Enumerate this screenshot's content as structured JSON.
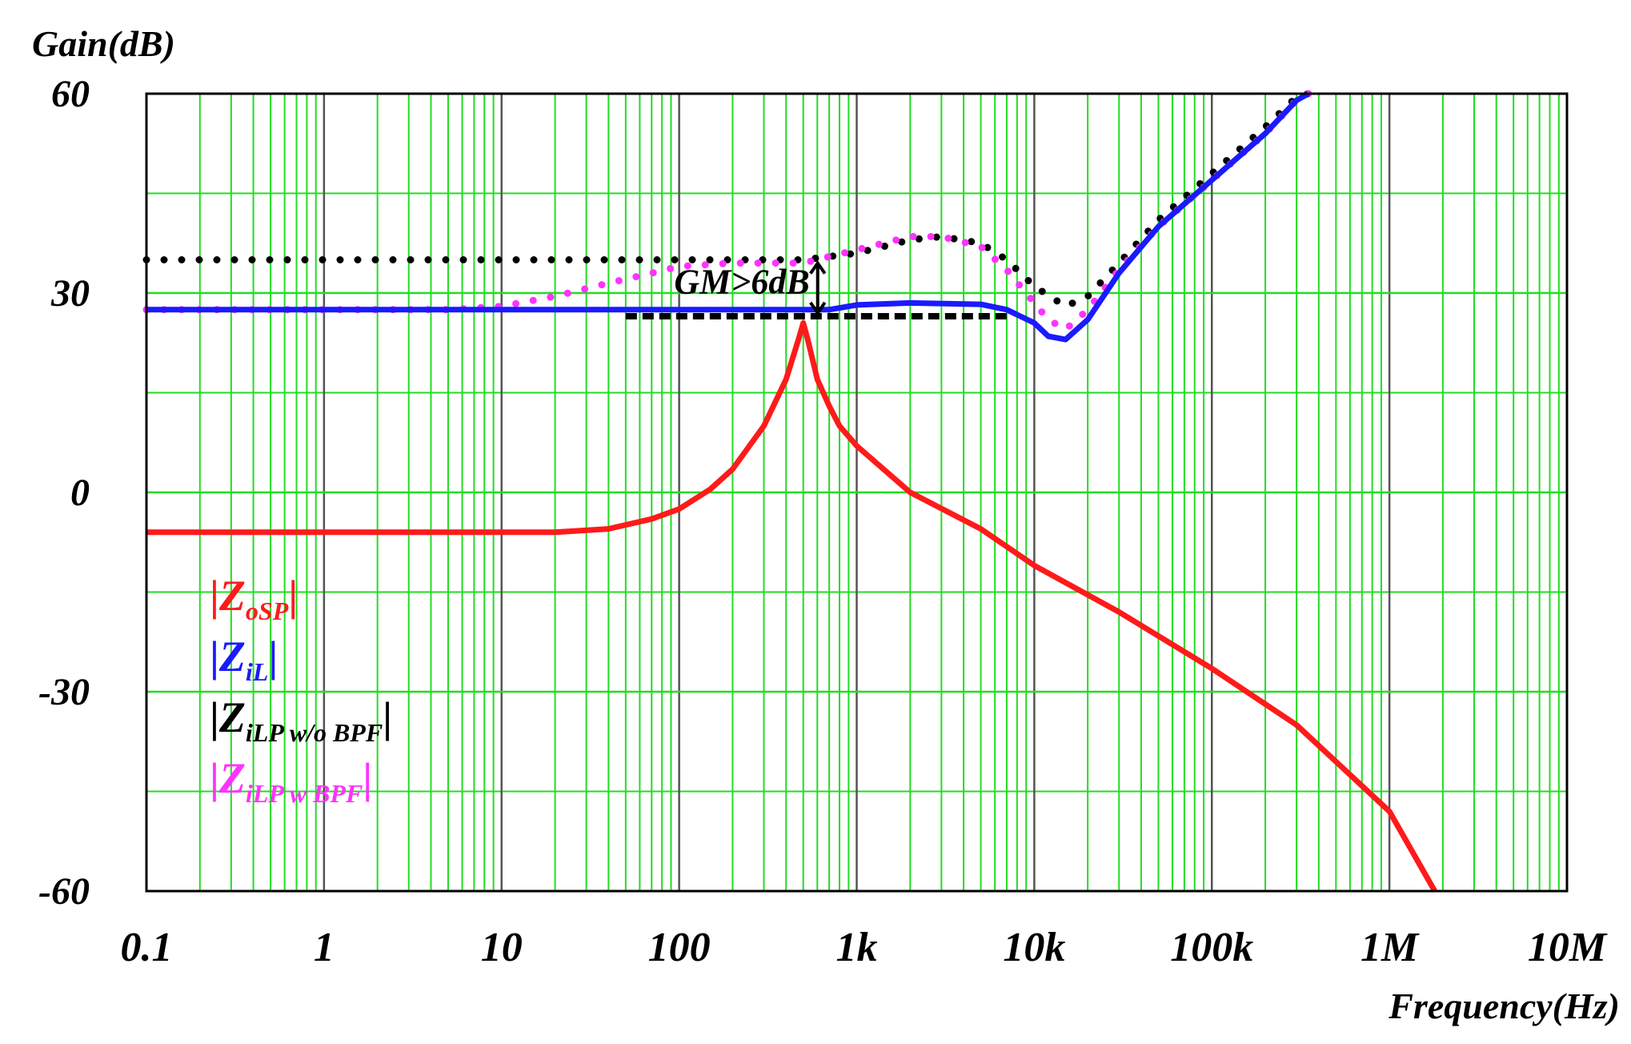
{
  "chart_data": {
    "type": "line",
    "ylabel": "Gain(dB)",
    "xlabel": "Frequency(Hz)",
    "x_scale": "log",
    "xlim": [
      0.1,
      10000000
    ],
    "ylim": [
      -60,
      60
    ],
    "x_ticks": [
      {
        "value": 0.1,
        "label": "0.1"
      },
      {
        "value": 1,
        "label": "1"
      },
      {
        "value": 10,
        "label": "10"
      },
      {
        "value": 100,
        "label": "100"
      },
      {
        "value": 1000,
        "label": "1k"
      },
      {
        "value": 10000,
        "label": "10k"
      },
      {
        "value": 100000,
        "label": "100k"
      },
      {
        "value": 1000000,
        "label": "1M"
      },
      {
        "value": 10000000,
        "label": "10M"
      }
    ],
    "y_ticks": [
      {
        "value": 60,
        "label": "60"
      },
      {
        "value": 30,
        "label": "30"
      },
      {
        "value": 0,
        "label": "0"
      },
      {
        "value": -30,
        "label": "-30"
      },
      {
        "value": -60,
        "label": "-60"
      }
    ],
    "grid": true,
    "grid_major_color": "#555555",
    "grid_minor_color": "#22dd22",
    "annotation": {
      "text": "GM>6dB",
      "x": 500,
      "y_top": 34.5,
      "y_bottom": 27
    },
    "reference_line": {
      "name": "dashed-black-reference",
      "x": [
        50,
        7000
      ],
      "y": 26.5,
      "color": "#000000"
    },
    "series": [
      {
        "name": "|ZoSP|",
        "legend_main": "Z",
        "legend_sub": "oSP",
        "color": "#ff1a1a",
        "style": "solid",
        "points": [
          [
            0.1,
            -6
          ],
          [
            10,
            -6
          ],
          [
            20,
            -6
          ],
          [
            40,
            -5.5
          ],
          [
            70,
            -4
          ],
          [
            100,
            -2.5
          ],
          [
            150,
            0.5
          ],
          [
            200,
            3.5
          ],
          [
            300,
            10
          ],
          [
            400,
            17
          ],
          [
            470,
            23
          ],
          [
            500,
            25.5
          ],
          [
            530,
            23
          ],
          [
            600,
            17
          ],
          [
            700,
            13
          ],
          [
            800,
            10
          ],
          [
            1000,
            7
          ],
          [
            2000,
            0
          ],
          [
            5000,
            -5.5
          ],
          [
            10000,
            -11
          ],
          [
            30000,
            -18
          ],
          [
            100000,
            -26.5
          ],
          [
            300000,
            -35
          ],
          [
            1000000,
            -48
          ],
          [
            1800000,
            -60
          ]
        ]
      },
      {
        "name": "|ZiL|",
        "legend_main": "Z",
        "legend_sub": "iL",
        "color": "#1a1aff",
        "style": "solid",
        "points": [
          [
            0.1,
            27.5
          ],
          [
            10,
            27.5
          ],
          [
            100,
            27.5
          ],
          [
            700,
            27.5
          ],
          [
            1000,
            28.2
          ],
          [
            2000,
            28.5
          ],
          [
            5000,
            28.3
          ],
          [
            7000,
            27.5
          ],
          [
            10000,
            25.5
          ],
          [
            12000,
            23.5
          ],
          [
            15000,
            23
          ],
          [
            20000,
            26
          ],
          [
            30000,
            33
          ],
          [
            50000,
            40
          ],
          [
            100000,
            47
          ],
          [
            200000,
            54
          ],
          [
            300000,
            59
          ],
          [
            350000,
            60
          ]
        ]
      },
      {
        "name": "|ZiLP w/o BPF|",
        "legend_main": "Z",
        "legend_sub": "iLP w/o BPF",
        "color": "#000000",
        "style": "dotted",
        "points": [
          [
            0.1,
            35
          ],
          [
            10,
            35
          ],
          [
            100,
            35
          ],
          [
            500,
            35
          ],
          [
            1000,
            36
          ],
          [
            2000,
            38
          ],
          [
            3000,
            38.5
          ],
          [
            5000,
            37.5
          ],
          [
            7000,
            35
          ],
          [
            10000,
            31
          ],
          [
            15000,
            28
          ],
          [
            20000,
            29.5
          ],
          [
            30000,
            34.5
          ],
          [
            50000,
            41
          ],
          [
            100000,
            48
          ],
          [
            200000,
            55
          ],
          [
            300000,
            59.5
          ],
          [
            350000,
            60
          ]
        ]
      },
      {
        "name": "|ZiLP w BPF|",
        "legend_main": "Z",
        "legend_sub": "iLP w BPF",
        "color": "#ff33ff",
        "style": "dotted",
        "points": [
          [
            0.1,
            27.5
          ],
          [
            5,
            27.5
          ],
          [
            10,
            28
          ],
          [
            20,
            29.5
          ],
          [
            40,
            31.5
          ],
          [
            70,
            33
          ],
          [
            100,
            34
          ],
          [
            200,
            34.5
          ],
          [
            500,
            34.5
          ],
          [
            1000,
            36.5
          ],
          [
            2000,
            38.5
          ],
          [
            3000,
            38.5
          ],
          [
            5000,
            37
          ],
          [
            7000,
            33.5
          ],
          [
            10000,
            28.5
          ],
          [
            12000,
            26
          ],
          [
            15000,
            24.5
          ],
          [
            20000,
            27.5
          ],
          [
            30000,
            33.5
          ],
          [
            50000,
            40
          ],
          [
            100000,
            47
          ],
          [
            200000,
            54
          ],
          [
            300000,
            59
          ],
          [
            350000,
            60
          ]
        ]
      }
    ]
  }
}
